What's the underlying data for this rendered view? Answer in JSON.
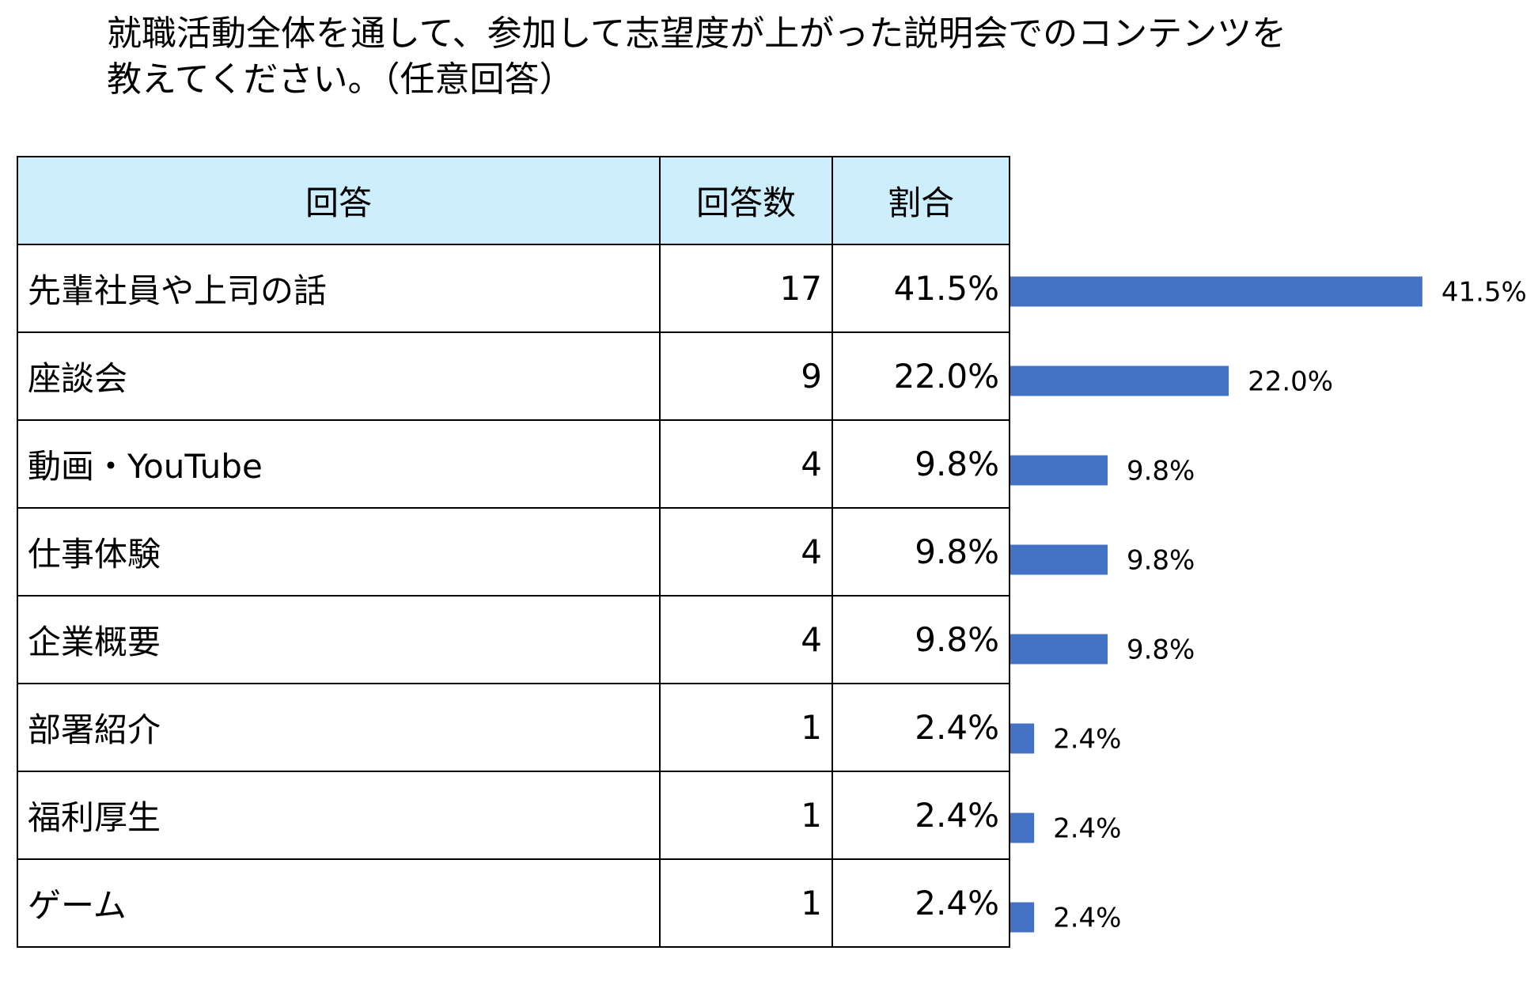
{
  "title": {
    "line1": "就職活動全体を通して、参加して志望度が上がった説明会でのコンテンツを",
    "line2": "教えてください。（任意回答）"
  },
  "table": {
    "headers": {
      "answer": "回答",
      "count": "回答数",
      "ratio": "割合"
    },
    "rows": [
      {
        "label": "先輩社員や上司の話",
        "count": "17",
        "pct": "41.5%"
      },
      {
        "label": "座談会",
        "count": "9",
        "pct": "22.0%"
      },
      {
        "label": "動画・YouTube",
        "count": "4",
        "pct": "9.8%"
      },
      {
        "label": "仕事体験",
        "count": "4",
        "pct": "9.8%"
      },
      {
        "label": "企業概要",
        "count": "4",
        "pct": "9.8%"
      },
      {
        "label": "部署紹介",
        "count": "1",
        "pct": "2.4%"
      },
      {
        "label": "福利厚生",
        "count": "1",
        "pct": "2.4%"
      },
      {
        "label": "ゲーム",
        "count": "1",
        "pct": "2.4%"
      }
    ]
  },
  "chart_data": {
    "type": "bar",
    "orientation": "horizontal",
    "categories": [
      "先輩社員や上司の話",
      "座談会",
      "動画・YouTube",
      "仕事体験",
      "企業概要",
      "部署紹介",
      "福利厚生",
      "ゲーム"
    ],
    "values": [
      41.5,
      22.0,
      9.8,
      9.8,
      9.8,
      2.4,
      2.4,
      2.4
    ],
    "data_labels": [
      "41.5%",
      "22.0%",
      "9.8%",
      "9.8%",
      "9.8%",
      "2.4%",
      "2.4%",
      "2.4%"
    ],
    "bar_color": "#4472c4",
    "grid": false,
    "legend": "none"
  }
}
